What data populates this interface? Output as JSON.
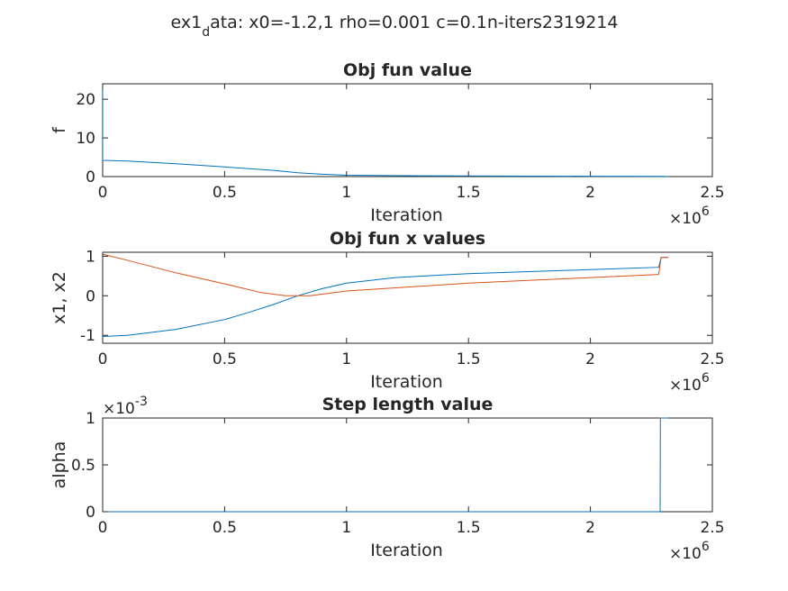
{
  "figure": {
    "suptitle_main_a": "ex1",
    "suptitle_sub": "d",
    "suptitle_main_b": "ata: x0=-1.2,1 rho=0.001 c=0.1n-iters2319214"
  },
  "colors": {
    "series1": "#0072BD",
    "series2": "#D95319",
    "axes": "#262626"
  },
  "chart_data": [
    {
      "type": "line",
      "title": "Obj fun value",
      "xlabel": "Iteration",
      "ylabel": "f",
      "xlim": [
        0,
        2500000
      ],
      "ylim": [
        0,
        24
      ],
      "xticks": [
        0,
        500000,
        1000000,
        1500000,
        2000000,
        2500000
      ],
      "xtick_labels": [
        "0",
        "0.5",
        "1",
        "1.5",
        "2",
        "2.5"
      ],
      "yticks": [
        0,
        10,
        20
      ],
      "ytick_labels": [
        "0",
        "10",
        "20"
      ],
      "x_exponent_base": "×10",
      "x_exponent_power": "6",
      "series": [
        {
          "color": "#0072BD",
          "x": [
            0,
            1,
            100000,
            300000,
            500000,
            700000,
            800000,
            900000,
            1000000,
            1300000,
            1600000,
            2000000,
            2300000,
            2319214
          ],
          "y": [
            24.2,
            4.2,
            4.0,
            3.3,
            2.5,
            1.6,
            1.0,
            0.6,
            0.35,
            0.2,
            0.15,
            0.1,
            0.05,
            0.0
          ]
        }
      ]
    },
    {
      "type": "line",
      "title": "Obj fun x values",
      "xlabel": "Iteration",
      "ylabel": "x1, x2",
      "xlim": [
        0,
        2500000
      ],
      "ylim": [
        -1.2,
        1.1
      ],
      "xticks": [
        0,
        500000,
        1000000,
        1500000,
        2000000,
        2500000
      ],
      "xtick_labels": [
        "0",
        "0.5",
        "1",
        "1.5",
        "2",
        "2.5"
      ],
      "yticks": [
        -1,
        0,
        1
      ],
      "ytick_labels": [
        "-1",
        "0",
        "1"
      ],
      "x_exponent_base": "×10",
      "x_exponent_power": "6",
      "series": [
        {
          "color": "#0072BD",
          "x": [
            0,
            1,
            100000,
            300000,
            500000,
            600000,
            700000,
            800000,
            900000,
            1000000,
            1200000,
            1500000,
            2000000,
            2280000,
            2290000,
            2319214
          ],
          "y": [
            -1.2,
            -1.03,
            -1.0,
            -0.85,
            -0.6,
            -0.42,
            -0.22,
            0.0,
            0.18,
            0.32,
            0.46,
            0.56,
            0.66,
            0.72,
            0.97,
            0.97
          ]
        },
        {
          "color": "#D95319",
          "x": [
            0,
            1,
            100000,
            300000,
            500000,
            650000,
            750000,
            850000,
            1000000,
            1500000,
            2000000,
            2280000,
            2290000,
            2319214
          ],
          "y": [
            1.0,
            1.05,
            0.9,
            0.58,
            0.3,
            0.08,
            0.0,
            0.0,
            0.12,
            0.32,
            0.46,
            0.54,
            0.97,
            0.97
          ]
        }
      ]
    },
    {
      "type": "line",
      "title": "Step length value",
      "xlabel": "Iteration",
      "ylabel": "alpha",
      "xlim": [
        0,
        2500000
      ],
      "ylim": [
        0,
        0.001
      ],
      "xticks": [
        0,
        500000,
        1000000,
        1500000,
        2000000,
        2500000
      ],
      "xtick_labels": [
        "0",
        "0.5",
        "1",
        "1.5",
        "2",
        "2.5"
      ],
      "yticks": [
        0,
        0.0005,
        0.001
      ],
      "ytick_labels": [
        "0",
        "0.5",
        "1"
      ],
      "x_exponent_base": "×10",
      "x_exponent_power": "6",
      "y_exponent_base": "×10",
      "y_exponent_power": "-3",
      "series": [
        {
          "color": "#0072BD",
          "x": [
            0,
            2286000,
            2287000,
            2319214
          ],
          "y": [
            0.0,
            0.0,
            0.001,
            0.001
          ]
        }
      ]
    }
  ]
}
